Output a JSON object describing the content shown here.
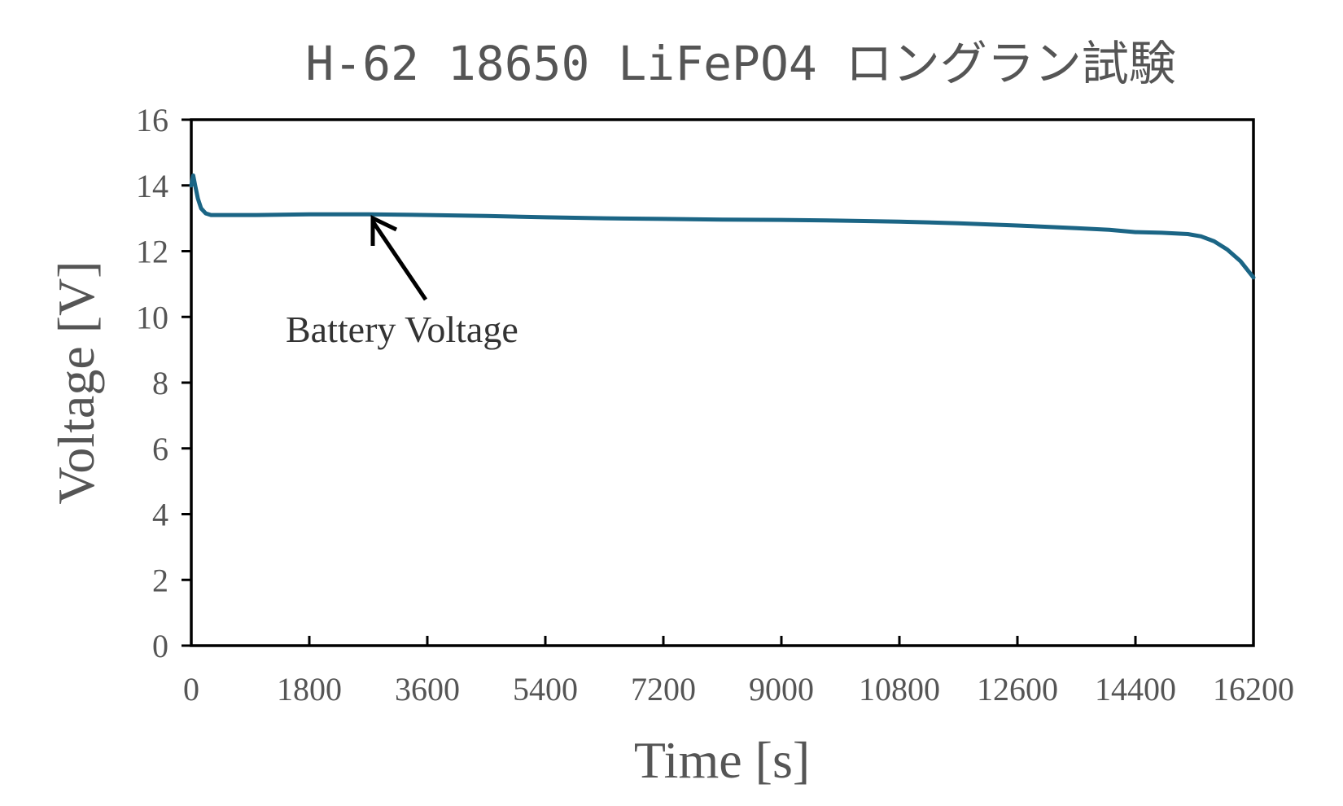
{
  "chart_data": {
    "type": "line",
    "title": "H-62 18650 LiFePO4 ロングラン試験",
    "xlabel": "Time [s]",
    "ylabel": "Voltage [V]",
    "xlim": [
      0,
      16200
    ],
    "ylim": [
      0,
      16
    ],
    "x_ticks": [
      "0",
      "1800",
      "3600",
      "5400",
      "7200",
      "9000",
      "10800",
      "12600",
      "14400",
      "16200"
    ],
    "y_ticks": [
      "0",
      "2",
      "4",
      "6",
      "8",
      "10",
      "12",
      "14",
      "16"
    ],
    "grid": false,
    "line_color": "#1b6585",
    "annotation": {
      "text": "Battery Voltage",
      "points_to": {
        "x": 2700,
        "y": 13.1
      }
    },
    "series": [
      {
        "x": [
          0,
          30,
          60,
          100,
          150,
          220,
          300,
          400,
          600,
          1000,
          1800,
          2700,
          3600,
          4500,
          5400,
          6300,
          7200,
          8100,
          9000,
          9900,
          10800,
          11700,
          12600,
          13500,
          14000,
          14400,
          14800,
          15200,
          15400,
          15600,
          15800,
          16000,
          16200
        ],
        "y": [
          14.0,
          14.3,
          14.0,
          13.6,
          13.3,
          13.15,
          13.1,
          13.1,
          13.1,
          13.1,
          13.12,
          13.12,
          13.1,
          13.07,
          13.03,
          13.0,
          12.98,
          12.96,
          12.95,
          12.93,
          12.9,
          12.85,
          12.78,
          12.7,
          12.65,
          12.58,
          12.56,
          12.52,
          12.45,
          12.3,
          12.05,
          11.7,
          11.2
        ]
      }
    ]
  }
}
